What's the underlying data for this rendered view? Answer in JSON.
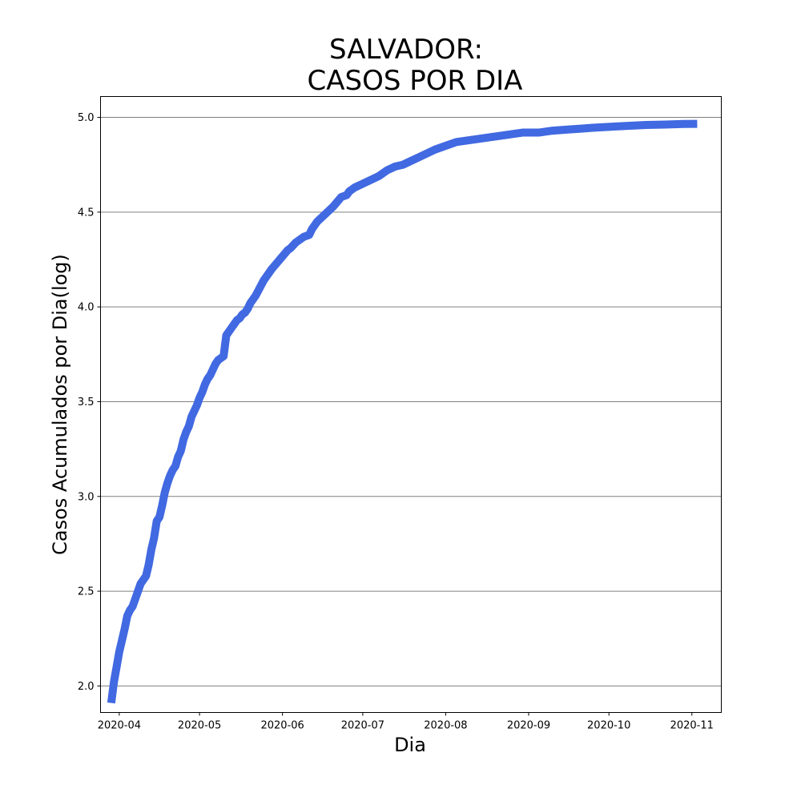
{
  "chart_data": {
    "type": "line",
    "title_lines": [
      "SALVADOR:",
      "CASOS POR DIA"
    ],
    "xlabel": "Dia",
    "ylabel": "Casos Acumulados por Dia(log)",
    "y_scale": "log10 of cumulative cases",
    "ylim": [
      1.86,
      5.11
    ],
    "xlim": [
      "2020-03-25",
      "2020-11-12"
    ],
    "y_ticks": [
      2.0,
      2.5,
      3.0,
      3.5,
      4.0,
      4.5,
      5.0
    ],
    "y_tick_labels": [
      "2.0",
      "2.5",
      "3.0",
      "3.5",
      "4.0",
      "4.5",
      "5.0"
    ],
    "x_ticks": [
      "2020-04-01",
      "2020-05-01",
      "2020-06-01",
      "2020-07-01",
      "2020-08-01",
      "2020-09-01",
      "2020-10-01",
      "2020-11-01"
    ],
    "x_tick_labels": [
      "2020-04",
      "2020-05",
      "2020-06",
      "2020-07",
      "2020-08",
      "2020-09",
      "2020-10",
      "2020-11"
    ],
    "grid": "horizontal",
    "line_color": "#4169E1",
    "grid_color": "#808080",
    "series": [
      {
        "x": [
          "2020-03-29",
          "2020-03-30",
          "2020-03-31",
          "2020-04-01",
          "2020-04-02",
          "2020-04-03",
          "2020-04-04",
          "2020-04-05",
          "2020-04-06",
          "2020-04-07",
          "2020-04-08",
          "2020-04-09",
          "2020-04-10",
          "2020-04-11",
          "2020-04-12",
          "2020-04-13",
          "2020-04-14",
          "2020-04-15",
          "2020-04-16",
          "2020-04-17",
          "2020-04-18",
          "2020-04-19",
          "2020-04-20",
          "2020-04-21",
          "2020-04-22",
          "2020-04-23",
          "2020-04-24",
          "2020-04-25",
          "2020-04-26",
          "2020-04-27",
          "2020-04-28",
          "2020-04-29",
          "2020-04-30",
          "2020-05-01",
          "2020-05-02",
          "2020-05-03",
          "2020-05-04",
          "2020-05-05",
          "2020-05-06",
          "2020-05-07",
          "2020-05-08",
          "2020-05-09",
          "2020-05-10",
          "2020-05-11",
          "2020-05-12",
          "2020-05-13",
          "2020-05-14",
          "2020-05-15",
          "2020-05-16",
          "2020-05-17",
          "2020-05-18",
          "2020-05-19",
          "2020-05-20",
          "2020-05-22",
          "2020-05-25",
          "2020-05-28",
          "2020-05-31",
          "2020-06-03",
          "2020-06-04",
          "2020-06-06",
          "2020-06-07",
          "2020-06-09",
          "2020-06-11",
          "2020-06-12",
          "2020-06-14",
          "2020-06-17",
          "2020-06-20",
          "2020-06-23",
          "2020-06-25",
          "2020-06-26",
          "2020-06-28",
          "2020-07-01",
          "2020-07-04",
          "2020-07-07",
          "2020-07-10",
          "2020-07-13",
          "2020-07-16",
          "2020-07-19",
          "2020-07-22",
          "2020-07-25",
          "2020-07-28",
          "2020-08-01",
          "2020-08-05",
          "2020-08-10",
          "2020-08-15",
          "2020-08-20",
          "2020-08-25",
          "2020-08-30",
          "2020-09-05",
          "2020-09-10",
          "2020-09-15",
          "2020-09-20",
          "2020-09-25",
          "2020-10-01",
          "2020-10-08",
          "2020-10-15",
          "2020-10-22",
          "2020-10-29",
          "2020-11-03"
        ],
        "y": [
          1.91,
          2.02,
          2.1,
          2.18,
          2.24,
          2.3,
          2.37,
          2.4,
          2.42,
          2.46,
          2.5,
          2.54,
          2.56,
          2.58,
          2.64,
          2.72,
          2.78,
          2.87,
          2.89,
          2.95,
          3.02,
          3.07,
          3.11,
          3.14,
          3.16,
          3.21,
          3.24,
          3.3,
          3.34,
          3.37,
          3.42,
          3.45,
          3.48,
          3.52,
          3.55,
          3.59,
          3.62,
          3.64,
          3.67,
          3.7,
          3.72,
          3.73,
          3.74,
          3.85,
          3.87,
          3.89,
          3.91,
          3.93,
          3.94,
          3.96,
          3.97,
          3.99,
          4.02,
          4.06,
          4.14,
          4.2,
          4.25,
          4.3,
          4.31,
          4.34,
          4.35,
          4.37,
          4.38,
          4.41,
          4.45,
          4.49,
          4.53,
          4.58,
          4.59,
          4.61,
          4.63,
          4.65,
          4.67,
          4.69,
          4.72,
          4.74,
          4.75,
          4.77,
          4.79,
          4.81,
          4.83,
          4.85,
          4.87,
          4.88,
          4.89,
          4.9,
          4.91,
          4.92,
          4.92,
          4.93,
          4.935,
          4.94,
          4.945,
          4.95,
          4.955,
          4.96,
          4.962,
          4.965,
          4.966
        ]
      }
    ]
  }
}
